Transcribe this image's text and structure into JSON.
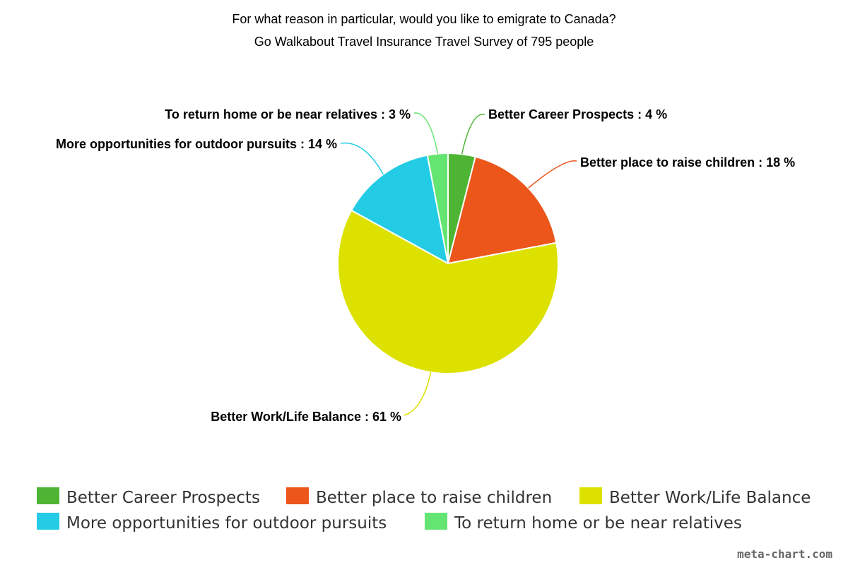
{
  "chart_data": {
    "type": "pie",
    "title": "For what reason in particular, would you like to emigrate to Canada?",
    "subtitle": "Go Walkabout Travel Insurance Travel Survey of 795 people",
    "slices": [
      {
        "name": "Better Career Prospects",
        "value": 4,
        "label": "Better Career Prospects : 4 %",
        "color": "#4db533"
      },
      {
        "name": "Better place to raise children",
        "value": 18,
        "label": "Better place to raise children : 18 %",
        "color": "#ec561b"
      },
      {
        "name": "Better Work/Life Balance",
        "value": 61,
        "label": "Better Work/Life Balance : 61 %",
        "color": "#dde100"
      },
      {
        "name": "More opportunities for outdoor pursuits",
        "value": 14,
        "label": "More opportunities for outdoor pursuits : 14 %",
        "color": "#24cbe5"
      },
      {
        "name": "To return home or be near relatives",
        "value": 3,
        "label": "To return home or be near relatives : 3 %",
        "color": "#64e572"
      }
    ],
    "legend_position": "bottom"
  },
  "watermark": "meta-chart.com"
}
